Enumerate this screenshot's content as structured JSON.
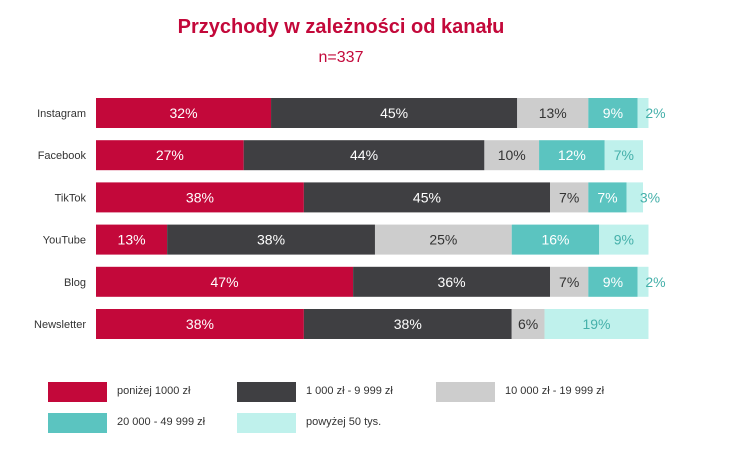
{
  "chart_data": {
    "type": "bar",
    "orientation": "horizontal",
    "stacked": true,
    "title": "Przychody w zależności od kanału",
    "subtitle": "n=337",
    "categories": [
      "Instagram",
      "Facebook",
      "TikTok",
      "YouTube",
      "Blog",
      "Newsletter"
    ],
    "series": [
      {
        "name": "poniżej 1000 zł",
        "color": "#c3083a",
        "label_color": "#ffffff",
        "values": [
          32,
          27,
          38,
          13,
          47,
          38
        ]
      },
      {
        "name": "1 000 zł - 9 999 zł",
        "color": "#3f3f42",
        "label_color": "#ffffff",
        "values": [
          45,
          44,
          45,
          38,
          36,
          38
        ]
      },
      {
        "name": "10 000 zł - 19 999 zł",
        "color": "#cdcdcd",
        "label_color": "#333333",
        "values": [
          13,
          10,
          7,
          25,
          7,
          6
        ]
      },
      {
        "name": "20 000 - 49 999 zł",
        "color": "#5bc4c0",
        "label_color": "#ffffff",
        "values": [
          9,
          12,
          7,
          16,
          9,
          0
        ]
      },
      {
        "name": "powyżej 50 tys.",
        "color": "#bff1ec",
        "label_color": "#45b0aa",
        "values": [
          2,
          7,
          3,
          9,
          2,
          19
        ]
      }
    ],
    "data_labels": [
      [
        "32%",
        "45%",
        "13%",
        "9%",
        "2%"
      ],
      [
        "27%",
        "44%",
        "10%",
        "12%",
        "7%"
      ],
      [
        "38%",
        "45%",
        "7%",
        "7%",
        "3%"
      ],
      [
        "13%",
        "38%",
        "25%",
        "16%",
        "9%"
      ],
      [
        "47%",
        "36%",
        "7%",
        "9%",
        "2%"
      ],
      [
        "38%",
        "38%",
        "6%",
        "",
        "19%"
      ]
    ],
    "xlim": [
      0,
      100
    ],
    "grid": false,
    "legend_position": "bottom"
  }
}
